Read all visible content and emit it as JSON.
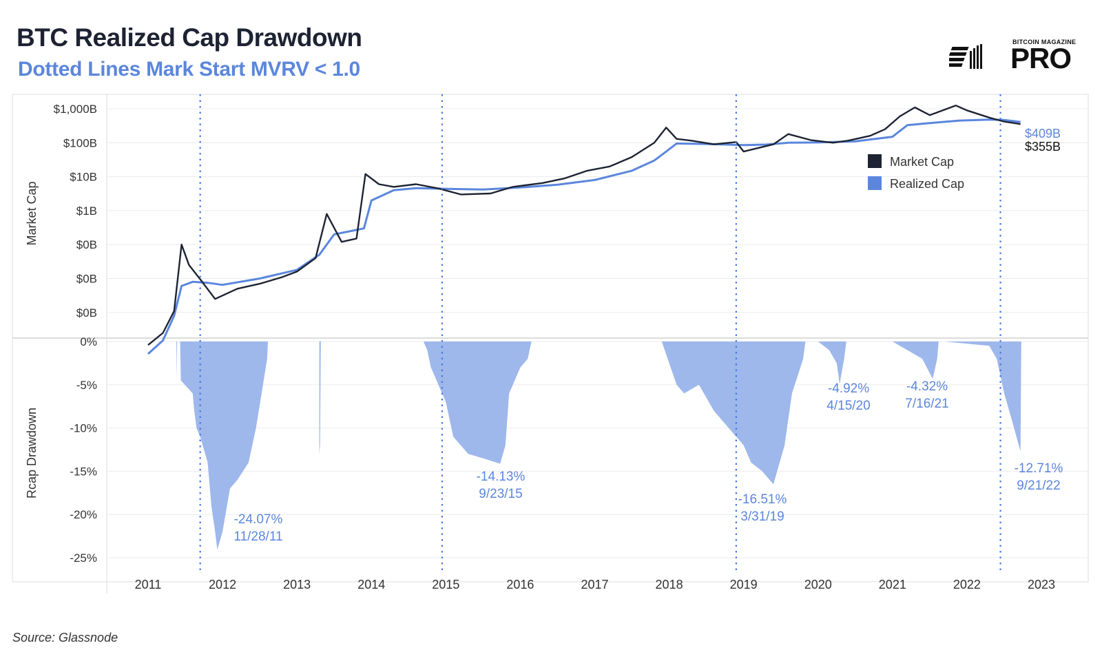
{
  "title": "BTC Realized Cap Drawdown",
  "subtitle": "Dotted Lines Mark Start MVRV < 1.0",
  "logo": {
    "small_text": "BITCOIN MAGAZINE",
    "big_text": "PRO"
  },
  "source": "Source: Glassnode",
  "colors": {
    "market_cap": "#1d2333",
    "realized_cap": "#5b86dc",
    "drawdown_fill": "#93b0ea",
    "grid": "#ebebeb"
  },
  "chart_data": [
    {
      "type": "line",
      "ylabel": "Market Cap",
      "yscale": "log",
      "y_ticks": [
        "$1,000B",
        "$100B",
        "$10B",
        "$1B",
        "$0B",
        "$0B",
        "$0B"
      ],
      "legend": {
        "placement": "right",
        "entries": [
          "Market Cap",
          "Realized Cap"
        ]
      },
      "end_labels": {
        "realized": "$409B",
        "market": "$355B"
      },
      "series": [
        {
          "name": "Market Cap",
          "x": [
            2011.0,
            2011.2,
            2011.35,
            2011.45,
            2011.55,
            2011.7,
            2011.9,
            2012.2,
            2012.5,
            2012.8,
            2013.0,
            2013.25,
            2013.4,
            2013.6,
            2013.8,
            2013.92,
            2014.1,
            2014.3,
            2014.6,
            2014.9,
            2015.2,
            2015.6,
            2015.9,
            2016.3,
            2016.6,
            2016.9,
            2017.2,
            2017.5,
            2017.8,
            2017.96,
            2018.1,
            2018.3,
            2018.6,
            2018.9,
            2019.0,
            2019.4,
            2019.6,
            2019.9,
            2020.2,
            2020.4,
            2020.7,
            2020.9,
            2021.1,
            2021.3,
            2021.5,
            2021.85,
            2022.0,
            2022.3,
            2022.5,
            2022.72
          ],
          "y": [
            0.00011,
            0.00025,
            0.0011,
            0.1,
            0.025,
            0.0095,
            0.0025,
            0.005,
            0.007,
            0.011,
            0.016,
            0.04,
            0.8,
            0.12,
            0.15,
            12,
            6,
            5,
            6,
            4.5,
            3,
            3.2,
            5,
            6.5,
            9,
            15,
            20,
            38,
            100,
            280,
            130,
            115,
            90,
            105,
            55,
            90,
            180,
            120,
            100,
            115,
            160,
            250,
            600,
            1100,
            650,
            1250,
            900,
            550,
            420,
            355
          ]
        },
        {
          "name": "Realized Cap",
          "x": [
            2011.0,
            2011.2,
            2011.35,
            2011.45,
            2011.6,
            2011.8,
            2012.0,
            2012.5,
            2013.0,
            2013.3,
            2013.5,
            2013.9,
            2014.0,
            2014.3,
            2014.6,
            2015.0,
            2015.5,
            2016.0,
            2016.5,
            2017.0,
            2017.5,
            2017.8,
            2017.96,
            2018.1,
            2018.5,
            2019.0,
            2019.3,
            2019.6,
            2020.0,
            2020.5,
            2021.0,
            2021.2,
            2021.5,
            2021.9,
            2022.3,
            2022.5,
            2022.72
          ],
          "y": [
            6e-05,
            0.00015,
            0.0008,
            0.006,
            0.008,
            0.0075,
            0.0065,
            0.01,
            0.018,
            0.05,
            0.2,
            0.3,
            2,
            4,
            4.6,
            4.4,
            4.2,
            4.8,
            5.8,
            8,
            15,
            30,
            55,
            95,
            92,
            85,
            88,
            100,
            102,
            110,
            150,
            330,
            380,
            450,
            480,
            470,
            409
          ]
        }
      ]
    },
    {
      "type": "area",
      "ylabel": "Rcap Drawdown",
      "y_ticks": [
        "0%",
        "-5%",
        "-10%",
        "-15%",
        "-20%",
        "-25%"
      ],
      "ylim": [
        -25,
        0
      ],
      "x_ticks": [
        "2011",
        "2012",
        "2013",
        "2014",
        "2015",
        "2016",
        "2017",
        "2018",
        "2019",
        "2020",
        "2021",
        "2022",
        "2023"
      ],
      "xlim": [
        2010.6,
        2023.3
      ],
      "mvrv_start_lines": [
        2011.7,
        2014.95,
        2018.9,
        2022.45
      ],
      "series": [
        {
          "name": "Realized Cap Drawdown",
          "x": [
            2011.0,
            2011.38,
            2011.385,
            2011.39,
            2011.43,
            2011.44,
            2011.6,
            2011.62,
            2011.65,
            2011.7,
            2011.8,
            2011.85,
            2011.9,
            2011.93,
            2012.0,
            2012.1,
            2012.2,
            2012.35,
            2012.45,
            2012.6,
            2012.61,
            2013.3,
            2013.3,
            2013.31,
            2013.32,
            2014.7,
            2014.75,
            2014.8,
            2015.0,
            2015.1,
            2015.3,
            2015.5,
            2015.73,
            2015.8,
            2015.85,
            2016.0,
            2016.1,
            2016.15,
            2016.18,
            2017.9,
            2017.98,
            2018.1,
            2018.2,
            2018.4,
            2018.6,
            2018.8,
            2019.0,
            2019.1,
            2019.25,
            2019.4,
            2019.55,
            2019.65,
            2019.8,
            2019.83,
            2019.85,
            2020.0,
            2020.15,
            2020.25,
            2020.29,
            2020.35,
            2020.38,
            2021.0,
            2021.1,
            2021.3,
            2021.4,
            2021.54,
            2021.6,
            2021.62,
            2021.7,
            2022.3,
            2022.4,
            2022.5,
            2022.6,
            2022.72,
            2022.73,
            2022.8
          ],
          "y": [
            0,
            0,
            -4.5,
            0,
            0,
            -4.5,
            -6,
            -8,
            -10,
            -11,
            -14,
            -19,
            -22,
            -24.07,
            -22,
            -17,
            -16,
            -14,
            -10,
            -2,
            0,
            0,
            -13,
            -12,
            0,
            0,
            -1,
            -3,
            -7,
            -11,
            -13,
            -13.5,
            -14.13,
            -12,
            -6,
            -3,
            -2,
            0,
            0,
            0,
            -2,
            -5,
            -6,
            -5,
            -8,
            -10,
            -12,
            -14,
            -15,
            -16.51,
            -12,
            -6,
            -2,
            0,
            0,
            0,
            -1,
            -2.5,
            -4.92,
            -2,
            0,
            0,
            -0.5,
            -1.5,
            -2,
            -4.32,
            -2,
            0,
            0,
            -0.5,
            -2,
            -6,
            -9,
            -12.71,
            0,
            0
          ]
        }
      ],
      "annotations": [
        {
          "value": "-24.07%",
          "date": "11/28/11"
        },
        {
          "value": "-14.13%",
          "date": "9/23/15"
        },
        {
          "value": "-16.51%",
          "date": "3/31/19"
        },
        {
          "value": "-4.92%",
          "date": "4/15/20"
        },
        {
          "value": "-4.32%",
          "date": "7/16/21"
        },
        {
          "value": "-12.71%",
          "date": "9/21/22"
        }
      ]
    }
  ]
}
